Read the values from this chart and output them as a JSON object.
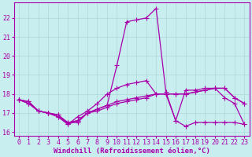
{
  "title": "",
  "xlabel": "Windchill (Refroidissement éolien,°C)",
  "ylabel": "",
  "background_color": "#c8eef0",
  "line_color": "#aa00aa",
  "xlim_min": -0.5,
  "xlim_max": 23.5,
  "ylim": [
    15.8,
    22.8
  ],
  "yticks": [
    16,
    17,
    18,
    19,
    20,
    21,
    22
  ],
  "xticks": [
    0,
    1,
    2,
    3,
    4,
    5,
    6,
    7,
    8,
    9,
    10,
    11,
    12,
    13,
    14,
    15,
    16,
    17,
    18,
    19,
    20,
    21,
    22,
    23
  ],
  "series": [
    {
      "x": [
        0,
        1,
        2,
        3,
        4,
        5,
        6,
        7,
        8,
        9,
        10,
        11,
        12,
        13,
        14,
        15,
        16,
        17,
        18,
        19,
        20,
        21,
        22,
        23
      ],
      "y": [
        17.7,
        17.6,
        17.1,
        17.0,
        16.9,
        16.4,
        16.8,
        17.1,
        17.5,
        18.0,
        18.3,
        18.5,
        18.6,
        18.7,
        18.0,
        18.0,
        18.0,
        18.0,
        18.1,
        18.2,
        18.3,
        18.3,
        17.8,
        17.5
      ]
    },
    {
      "x": [
        0,
        1,
        2,
        3,
        4,
        5,
        6,
        7,
        8,
        9,
        10,
        11,
        12,
        13,
        14,
        15,
        16,
        17,
        18,
        19,
        20,
        21,
        22,
        23
      ],
      "y": [
        17.7,
        17.5,
        17.1,
        17.0,
        16.8,
        16.4,
        16.6,
        17.0,
        17.2,
        17.4,
        19.5,
        21.8,
        21.9,
        22.0,
        22.5,
        18.1,
        16.6,
        18.2,
        18.2,
        18.3,
        18.3,
        17.8,
        17.5,
        16.4
      ]
    },
    {
      "x": [
        0,
        1,
        2,
        3,
        4,
        5,
        6,
        7,
        8,
        9,
        10,
        11,
        12,
        13,
        14,
        15,
        16,
        17,
        18,
        19,
        20,
        21,
        22,
        23
      ],
      "y": [
        17.7,
        17.5,
        17.1,
        17.0,
        16.8,
        16.5,
        16.6,
        17.0,
        17.2,
        17.4,
        17.6,
        17.7,
        17.8,
        17.9,
        18.0,
        18.0,
        18.0,
        18.0,
        18.1,
        18.2,
        18.3,
        18.3,
        17.8,
        17.5
      ]
    },
    {
      "x": [
        0,
        1,
        2,
        3,
        4,
        5,
        6,
        7,
        8,
        9,
        10,
        11,
        12,
        13,
        14,
        15,
        16,
        17,
        18,
        19,
        20,
        21,
        22,
        23
      ],
      "y": [
        17.7,
        17.6,
        17.1,
        17.0,
        16.9,
        16.5,
        16.5,
        17.0,
        17.1,
        17.3,
        17.5,
        17.6,
        17.7,
        17.8,
        18.0,
        18.0,
        16.6,
        16.3,
        16.5,
        16.5,
        16.5,
        16.5,
        16.5,
        16.4
      ]
    }
  ],
  "grid_color": "#aed8d8",
  "marker": "+",
  "markersize": 4.0,
  "linewidth": 0.9,
  "font_color": "#aa00aa",
  "font_size": 6.5,
  "tick_font_size": 6.0
}
